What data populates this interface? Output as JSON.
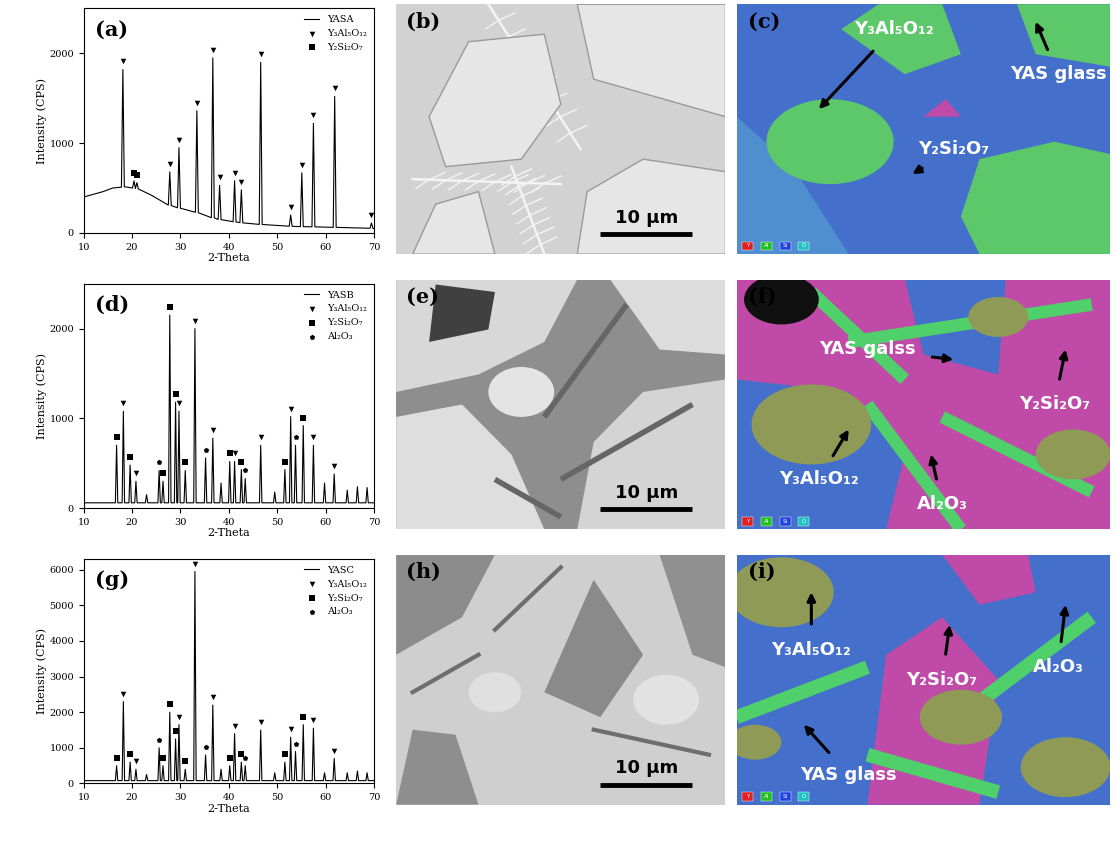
{
  "chart_data": [
    {
      "panel_label": "(a)",
      "type": "line",
      "x_label": "2-Theta",
      "y_label": "Intensity (CPS)",
      "xlim": [
        10,
        70
      ],
      "xticks": [
        10,
        20,
        30,
        40,
        50,
        60,
        70
      ],
      "ylim": [
        0,
        2500
      ],
      "yticks": [
        0,
        1000,
        2000
      ],
      "legend": "upper right",
      "series": [
        {
          "name": "YASA",
          "type": "line",
          "color": "#000000",
          "x": [
            10,
            14,
            16,
            17.8,
            18.1,
            18.4,
            20.1,
            20.4,
            20.7,
            21.0,
            21.3,
            24,
            27.5,
            27.8,
            28.1,
            29.4,
            29.7,
            30.0,
            33.1,
            33.4,
            33.7,
            36.4,
            36.7,
            37.0,
            37.8,
            38.1,
            38.4,
            40.9,
            41.2,
            41.5,
            42.3,
            42.6,
            42.9,
            46.3,
            46.6,
            46.9,
            52.5,
            52.8,
            53.1,
            54.8,
            55.1,
            55.4,
            57.2,
            57.5,
            57.8,
            61.6,
            61.9,
            62.2,
            69.2,
            69.5,
            69.8,
            70
          ],
          "values": [
            400,
            460,
            500,
            510,
            1820,
            515,
            500,
            580,
            495,
            560,
            490,
            420,
            310,
            680,
            305,
            280,
            950,
            275,
            230,
            1360,
            225,
            170,
            1950,
            168,
            150,
            530,
            148,
            125,
            580,
            122,
            115,
            480,
            112,
            95,
            1900,
            94,
            75,
            200,
            74,
            70,
            670,
            70,
            68,
            1220,
            68,
            62,
            1520,
            62,
            52,
            110,
            51,
            50
          ]
        },
        {
          "name": "Y₃Al₅O₁₂",
          "type": "scatter",
          "marker": "triangle_down",
          "color": "#000000",
          "x": [
            18.1,
            27.8,
            29.7,
            33.4,
            36.7,
            38.1,
            41.2,
            42.6,
            46.6,
            52.8,
            55.1,
            57.5,
            61.9,
            69.5
          ],
          "values": [
            1910,
            770,
            1040,
            1450,
            2040,
            620,
            670,
            570,
            1990,
            290,
            760,
            1310,
            1610,
            200
          ]
        },
        {
          "name": "Y₂Si₂O₇",
          "type": "scatter",
          "marker": "square",
          "color": "#000000",
          "x": [
            20.4,
            21.0
          ],
          "values": [
            670,
            650
          ]
        }
      ]
    },
    {
      "panel_label": "(d)",
      "type": "line",
      "x_label": "2-Theta",
      "y_label": "Intensity (CPS)",
      "xlim": [
        10,
        70
      ],
      "xticks": [
        10,
        20,
        30,
        40,
        50,
        60,
        70
      ],
      "ylim": [
        0,
        2500
      ],
      "yticks": [
        0,
        1000,
        2000
      ],
      "legend": "upper right",
      "series": [
        {
          "name": "YASB",
          "type": "line",
          "color": "#000000",
          "x": [
            10,
            16.55,
            16.8,
            17.05,
            17.95,
            18.2,
            18.45,
            19.35,
            19.6,
            19.85,
            20.55,
            20.8,
            21.05,
            22.75,
            23.0,
            23.25,
            25.35,
            25.6,
            25.85,
            26.15,
            26.4,
            26.65,
            27.55,
            27.8,
            28.05,
            28.75,
            29.0,
            29.25,
            29.45,
            29.7,
            29.95,
            30.75,
            31.0,
            31.25,
            32.75,
            33.0,
            33.25,
            34.95,
            35.2,
            35.45,
            36.45,
            36.7,
            36.95,
            38.15,
            38.4,
            38.65,
            39.95,
            40.2,
            40.45,
            40.95,
            41.2,
            41.45,
            42.35,
            42.6,
            42.85,
            43.15,
            43.4,
            43.65,
            46.35,
            46.6,
            46.85,
            49.25,
            49.5,
            49.75,
            51.35,
            51.6,
            51.85,
            52.55,
            52.8,
            53.05,
            53.55,
            53.8,
            54.05,
            55.15,
            55.4,
            55.65,
            57.25,
            57.5,
            57.75,
            59.55,
            59.8,
            60.05,
            61.55,
            61.8,
            62.05,
            64.25,
            64.5,
            64.75,
            66.35,
            66.6,
            66.85,
            68.35,
            68.6,
            68.85,
            70
          ],
          "values": [
            60,
            60,
            700,
            60,
            60,
            1080,
            60,
            60,
            480,
            60,
            60,
            300,
            60,
            60,
            150,
            60,
            60,
            420,
            60,
            60,
            300,
            60,
            60,
            2150,
            60,
            60,
            1180,
            60,
            60,
            1080,
            60,
            60,
            420,
            60,
            60,
            2000,
            60,
            60,
            560,
            60,
            60,
            780,
            60,
            60,
            280,
            60,
            60,
            520,
            60,
            60,
            520,
            60,
            60,
            430,
            60,
            60,
            330,
            60,
            60,
            700,
            60,
            60,
            180,
            60,
            60,
            430,
            60,
            60,
            1020,
            60,
            60,
            700,
            60,
            60,
            920,
            60,
            60,
            700,
            60,
            60,
            280,
            60,
            60,
            380,
            60,
            60,
            200,
            60,
            60,
            240,
            60,
            60,
            230,
            60,
            60
          ]
        },
        {
          "name": "Y₃Al₅O₁₂",
          "type": "scatter",
          "marker": "triangle_down",
          "color": "#000000",
          "x": [
            18.2,
            20.8,
            29.7,
            33.0,
            36.7,
            41.2,
            46.6,
            52.8,
            57.5,
            61.8
          ],
          "values": [
            1170,
            390,
            1170,
            2090,
            870,
            610,
            790,
            1110,
            790,
            470
          ]
        },
        {
          "name": "Y₂Si₂O₇",
          "type": "scatter",
          "marker": "square",
          "color": "#000000",
          "x": [
            16.8,
            19.6,
            26.4,
            27.8,
            29.0,
            31.0,
            40.2,
            42.6,
            51.6,
            55.4
          ],
          "values": [
            790,
            570,
            390,
            2240,
            1270,
            510,
            610,
            520,
            520,
            1010
          ]
        },
        {
          "name": "Al₂O₃",
          "type": "scatter",
          "marker": "pentagon",
          "color": "#000000",
          "x": [
            25.6,
            35.2,
            43.4,
            53.8
          ],
          "values": [
            510,
            650,
            420,
            790
          ]
        }
      ]
    },
    {
      "panel_label": "(g)",
      "type": "line",
      "x_label": "2-Theta",
      "y_label": "Intensity (CPS)",
      "xlim": [
        10,
        70
      ],
      "xticks": [
        10,
        20,
        30,
        40,
        50,
        60,
        70
      ],
      "ylim": [
        0,
        6300
      ],
      "yticks": [
        0,
        1000,
        2000,
        3000,
        4000,
        5000,
        6000
      ],
      "legend": "upper right",
      "series": [
        {
          "name": "YASC",
          "type": "line",
          "color": "#000000",
          "x": [
            10,
            16.55,
            16.8,
            17.05,
            17.95,
            18.2,
            18.45,
            19.35,
            19.6,
            19.85,
            20.55,
            20.8,
            21.05,
            22.75,
            23.0,
            23.25,
            25.35,
            25.6,
            25.85,
            26.15,
            26.4,
            26.65,
            27.55,
            27.8,
            28.05,
            28.75,
            29.0,
            29.25,
            29.45,
            29.7,
            29.95,
            30.75,
            31.0,
            31.25,
            32.75,
            33.0,
            33.25,
            34.95,
            35.2,
            35.45,
            36.45,
            36.7,
            36.95,
            38.15,
            38.4,
            38.65,
            39.95,
            40.2,
            40.45,
            40.95,
            41.2,
            41.45,
            42.35,
            42.6,
            42.85,
            43.15,
            43.4,
            43.65,
            46.35,
            46.6,
            46.85,
            49.25,
            49.5,
            49.75,
            51.35,
            51.6,
            51.85,
            52.55,
            52.8,
            53.05,
            53.55,
            53.8,
            54.05,
            55.15,
            55.4,
            55.65,
            57.25,
            57.5,
            57.75,
            59.55,
            59.8,
            60.05,
            61.55,
            61.8,
            62.05,
            64.25,
            64.5,
            64.75,
            66.35,
            66.6,
            66.85,
            68.35,
            68.6,
            68.85,
            70
          ],
          "values": [
            80,
            80,
            500,
            80,
            80,
            2300,
            80,
            80,
            600,
            80,
            80,
            400,
            80,
            80,
            250,
            80,
            80,
            1000,
            80,
            80,
            500,
            80,
            80,
            2000,
            80,
            80,
            1250,
            80,
            80,
            1650,
            80,
            80,
            400,
            80,
            80,
            5950,
            80,
            80,
            800,
            80,
            80,
            2200,
            80,
            80,
            400,
            80,
            80,
            500,
            80,
            80,
            1400,
            80,
            80,
            600,
            80,
            80,
            500,
            80,
            80,
            1500,
            80,
            80,
            300,
            80,
            80,
            600,
            80,
            80,
            1300,
            80,
            80,
            900,
            80,
            80,
            1650,
            80,
            80,
            1550,
            80,
            80,
            300,
            80,
            80,
            700,
            80,
            80,
            300,
            80,
            80,
            350,
            80,
            80,
            300,
            80,
            80
          ]
        },
        {
          "name": "Y₃Al₅O₁₂",
          "type": "scatter",
          "marker": "triangle_down",
          "color": "#000000",
          "x": [
            18.2,
            20.8,
            29.7,
            33.0,
            36.7,
            41.2,
            46.6,
            52.8,
            57.5,
            61.8
          ],
          "values": [
            2520,
            620,
            1870,
            6150,
            2420,
            1620,
            1720,
            1520,
            1770,
            920
          ]
        },
        {
          "name": "Y₂Si₂O₇",
          "type": "scatter",
          "marker": "square",
          "color": "#000000",
          "x": [
            16.8,
            19.6,
            26.4,
            27.8,
            29.0,
            31.0,
            40.2,
            42.6,
            51.6,
            55.4
          ],
          "values": [
            720,
            820,
            720,
            2220,
            1470,
            620,
            720,
            820,
            820,
            1870
          ]
        },
        {
          "name": "Al₂O₃",
          "type": "scatter",
          "marker": "pentagon",
          "color": "#000000",
          "x": [
            25.6,
            35.2,
            43.4,
            53.8
          ],
          "values": [
            1220,
            1020,
            720,
            1120
          ]
        }
      ]
    }
  ],
  "micrographs": [
    {
      "panel_label": "(b)",
      "scale_bar": "10 μm"
    },
    {
      "panel_label": "(e)",
      "scale_bar": "10 μm"
    },
    {
      "panel_label": "(h)",
      "scale_bar": "10 μm"
    }
  ],
  "eds_maps": [
    {
      "panel_label": "(c)",
      "labels": [
        "Y₃Al₅O₁₂",
        "Y₂Si₂O₇",
        "YAS glass"
      ],
      "elements": [
        {
          "name": "Y",
          "color": "#e02020"
        },
        {
          "name": "Al",
          "color": "#20c020"
        },
        {
          "name": "Si",
          "color": "#2040e0"
        },
        {
          "name": "O",
          "color": "#20c0c0"
        }
      ]
    },
    {
      "panel_label": "(f)",
      "labels": [
        "YAS galss",
        "Y₂Si₂O₇",
        "Y₃Al₅O₁₂",
        "Al₂O₃"
      ],
      "elements": [
        {
          "name": "Y",
          "color": "#e02020"
        },
        {
          "name": "Al",
          "color": "#20c020"
        },
        {
          "name": "Si",
          "color": "#2040e0"
        },
        {
          "name": "O",
          "color": "#20c0c0"
        }
      ]
    },
    {
      "panel_label": "(i)",
      "labels": [
        "Y₃Al₅O₁₂",
        "Y₂Si₂O₇",
        "Al₂O₃",
        "YAS glass"
      ],
      "elements": [
        {
          "name": "Y",
          "color": "#e02020"
        },
        {
          "name": "Al",
          "color": "#20c020"
        },
        {
          "name": "Si",
          "color": "#2040e0"
        },
        {
          "name": "O",
          "color": "#20c0c0"
        }
      ]
    }
  ]
}
